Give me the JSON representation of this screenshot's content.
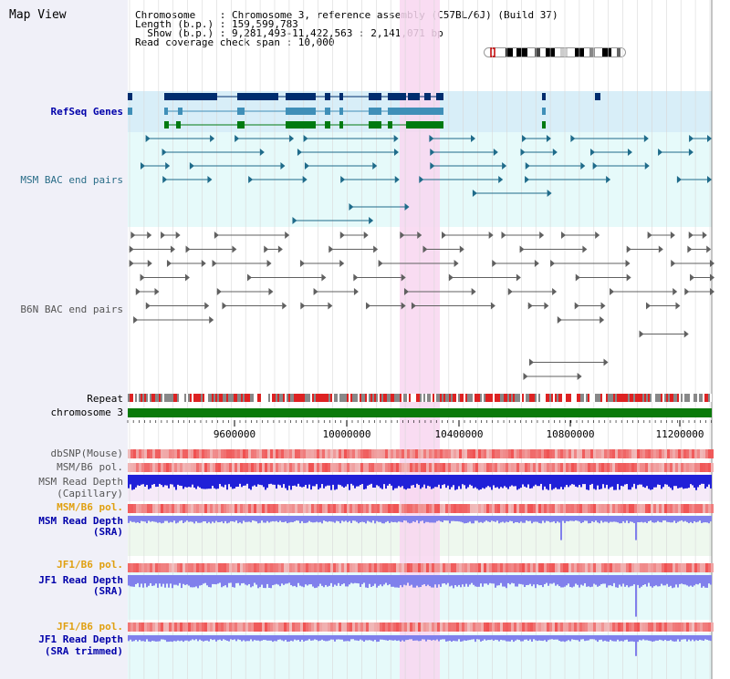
{
  "view_title": "Map View",
  "info": {
    "chromosome_line": "Chromosome    : Chromosome 3, reference assembly (C57BL/6J) (Build 37)",
    "length_line": "Length (b.p.) : 159,599,783",
    "show_line": "  Show (b.p.) : 9,281,493-11,422,563 : 2,141,071 bp",
    "coverage_line": "Read coverage check span : 10,000"
  },
  "tracks": {
    "refseq": "RefSeq Genes",
    "msm_bac": "MSM BAC end pairs",
    "b6n_bac": "B6N BAC end pairs",
    "repeat": "Repeat",
    "chromosome": "chromosome 3",
    "dbsnp": "dbSNP(Mouse)",
    "msm_b6_pol_1": "MSM/B6 pol.",
    "msm_read_depth_cap_1": "MSM Read Depth",
    "msm_read_depth_cap_2": "(Capillary)",
    "msm_b6_pol_2": "MSM/B6 pol.",
    "msm_read_depth_sra_1": "MSM Read Depth",
    "msm_read_depth_sra_2": "(SRA)",
    "jf1_b6_pol_1": "JF1/B6 pol.",
    "jf1_read_depth_sra_1": "JF1 Read Depth",
    "jf1_read_depth_sra_2": "(SRA)",
    "jf1_b6_pol_2": "JF1/B6 pol.",
    "jf1_read_depth_trim_1": "JF1 Read Depth",
    "jf1_read_depth_trim_2": "(SRA trimmed)"
  },
  "axis_ticks": [
    "9600000",
    "10000000",
    "10400000",
    "10800000",
    "11200000"
  ],
  "colors": {
    "refseq_bg": "#d8eef8",
    "msm_bg": "#e6fafa",
    "b6n_bg": "#ffffff",
    "highlight": "#f8d6f0",
    "gene_dark": "#002d6e",
    "gene_mid": "#3f8fb8",
    "gene_green": "#007a10",
    "msm_bac": "#1f6b8a",
    "b6n_bac": "#606060",
    "chromosome": "#0a7a0a",
    "depth_dark": "#2020d8",
    "depth_light": "#8080ec",
    "pol_red": "#ee3030"
  }
}
